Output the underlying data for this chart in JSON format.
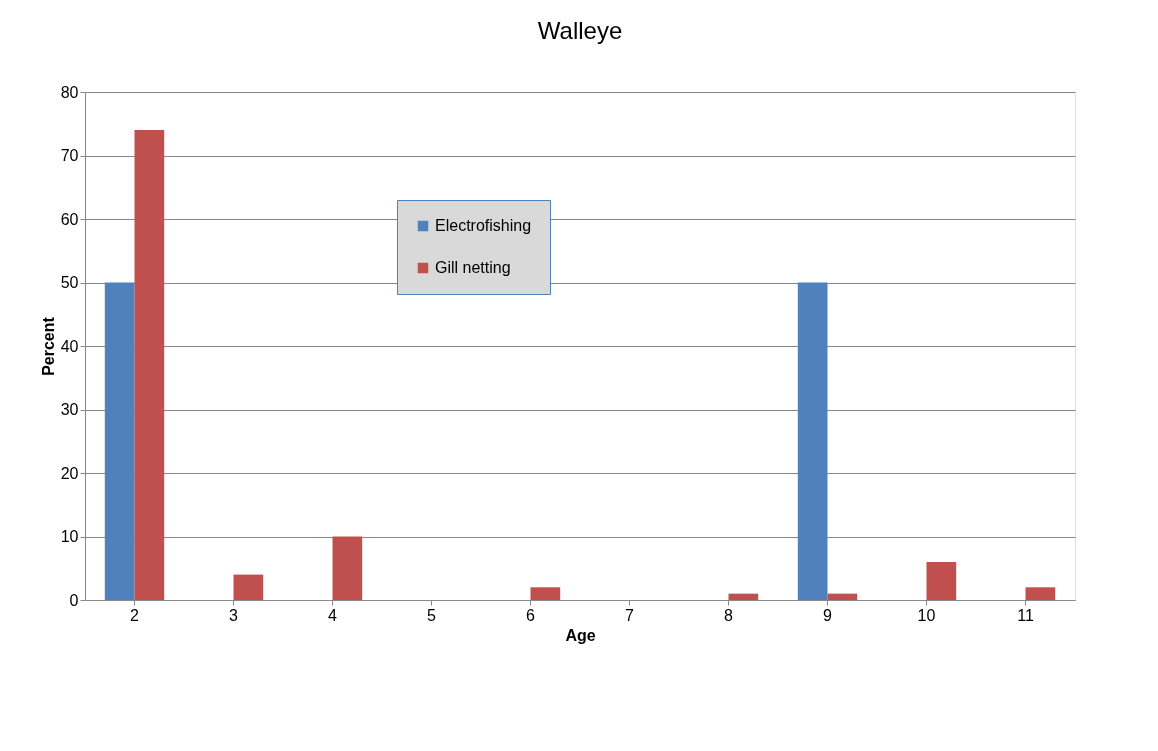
{
  "chart_data": {
    "type": "bar",
    "title": "Walleye",
    "xlabel": "Age",
    "ylabel": "Percent",
    "categories": [
      "2",
      "3",
      "4",
      "5",
      "6",
      "7",
      "8",
      "9",
      "10",
      "11"
    ],
    "series": [
      {
        "name": "Electrofishing",
        "color": "#4f81bd",
        "values": [
          50,
          0,
          0,
          0,
          0,
          0,
          0,
          50,
          0,
          0
        ]
      },
      {
        "name": "Gill netting",
        "color": "#c0504d",
        "values": [
          74,
          4,
          10,
          0,
          2,
          0,
          1,
          1,
          6,
          2
        ]
      }
    ],
    "ylim": [
      0,
      80
    ],
    "yticks": [
      0,
      10,
      20,
      30,
      40,
      50,
      60,
      70,
      80
    ],
    "grid": "y",
    "legend": "top"
  }
}
